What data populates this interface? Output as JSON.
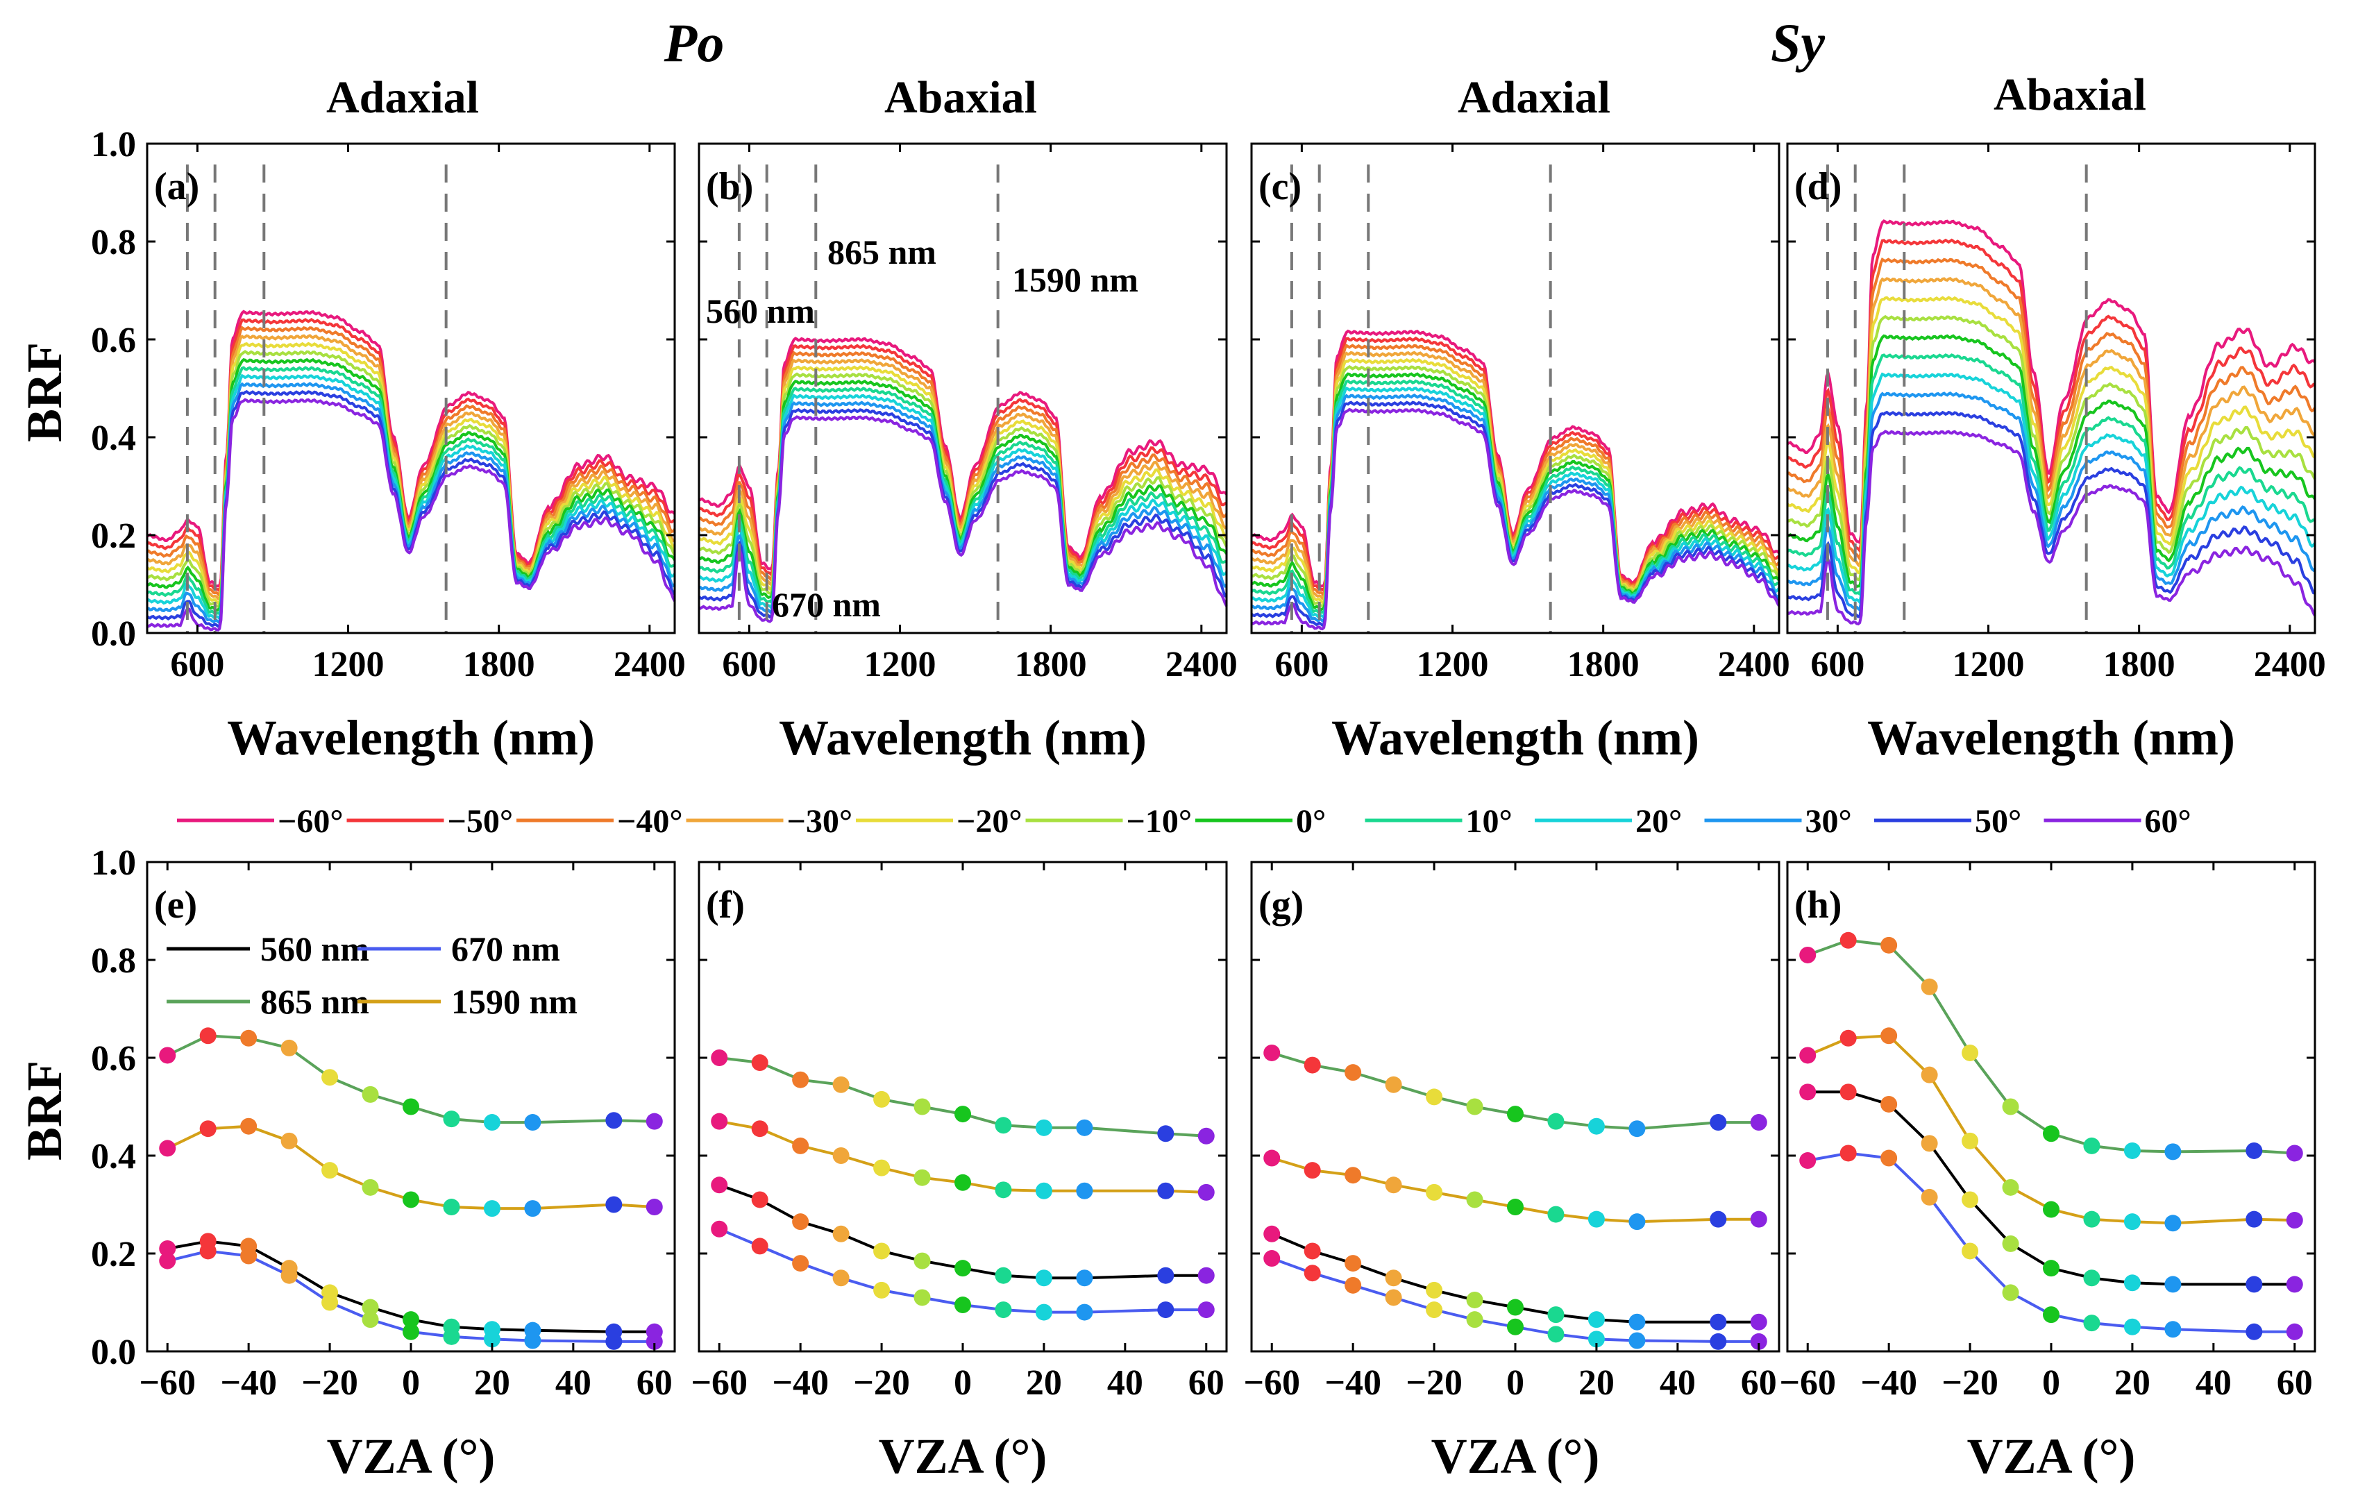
{
  "figure": {
    "species": [
      "Po",
      "Sy"
    ],
    "panel_titles": [
      "Adaxial",
      "Abaxial",
      "Adaxial",
      "Abaxial"
    ],
    "top_xlabel": "Wavelength (nm)",
    "bottom_xlabel": "VZA (°)",
    "ylabel": "BRF"
  },
  "axes": {
    "yticks": [
      "0.0",
      "0.2",
      "0.4",
      "0.6",
      "0.8",
      "1.0"
    ],
    "top_xticks": [
      "600",
      "1200",
      "1800",
      "2400"
    ],
    "bottom_xticks": [
      "−60",
      "−40",
      "−20",
      "0",
      "20",
      "40",
      "60"
    ]
  },
  "band_labels": [
    "560 nm",
    "670 nm",
    "865 nm",
    "1590 nm"
  ],
  "vza_legend": [
    {
      "label": "−60°",
      "color": "#e8197d"
    },
    {
      "label": "−50°",
      "color": "#f4363a"
    },
    {
      "label": "−40°",
      "color": "#ef7a2a"
    },
    {
      "label": "−30°",
      "color": "#f0a63a"
    },
    {
      "label": "−20°",
      "color": "#e8dc3a"
    },
    {
      "label": "−10°",
      "color": "#a8e040"
    },
    {
      "label": "0°",
      "color": "#17c51e"
    },
    {
      "label": "10°",
      "color": "#1ad890"
    },
    {
      "label": "20°",
      "color": "#17d3d9"
    },
    {
      "label": "30°",
      "color": "#1e96f0"
    },
    {
      "label": "50°",
      "color": "#2a3fe0"
    },
    {
      "label": "60°",
      "color": "#8a24e0"
    }
  ],
  "band_legend": [
    {
      "label": "560 nm",
      "color": "#000000"
    },
    {
      "label": "670 nm",
      "color": "#4a5cf0"
    },
    {
      "label": "865 nm",
      "color": "#5aa35a"
    },
    {
      "label": "1590 nm",
      "color": "#d4a017"
    }
  ],
  "chart_data": [
    {
      "type": "line",
      "panel": "(a)",
      "title": "Adaxial",
      "xlabel": "Wavelength (nm)",
      "ylabel": "BRF",
      "xlim": [
        400,
        2500
      ],
      "ylim": [
        0,
        1
      ],
      "vlines": [
        560,
        670,
        865,
        1590
      ],
      "series_note": "12 spectra for VZA −60° … 60°",
      "spectra": {
        "vis_bg": [
          0.19,
          0.015
        ],
        "green_peak": [
          0.23,
          0.05
        ],
        "nir": [
          0.655,
          0.475
        ],
        "swir1": [
          0.49,
          0.34
        ],
        "swir2": [
          0.36,
          0.23
        ],
        "end": [
          0.24,
          0.07
        ]
      }
    },
    {
      "type": "line",
      "panel": "(b)",
      "title": "Abaxial",
      "xlabel": "Wavelength (nm)",
      "ylabel": "BRF",
      "xlim": [
        400,
        2500
      ],
      "ylim": [
        0,
        1
      ],
      "vlines": [
        560,
        670,
        865,
        1590
      ],
      "series_note": "12 spectra for VZA −60° … 60°",
      "spectra": {
        "vis_bg": [
          0.26,
          0.05
        ],
        "green_peak": [
          0.34,
          0.17
        ],
        "nir": [
          0.6,
          0.44
        ],
        "swir1": [
          0.49,
          0.33
        ],
        "swir2": [
          0.39,
          0.22
        ],
        "end": [
          0.28,
          0.06
        ]
      }
    },
    {
      "type": "line",
      "panel": "(c)",
      "title": "Adaxial",
      "xlabel": "Wavelength (nm)",
      "ylabel": "BRF",
      "xlim": [
        400,
        2500
      ],
      "ylim": [
        0,
        1
      ],
      "vlines": [
        560,
        670,
        865,
        1590
      ],
      "series_note": "12 spectra for VZA −60° … 60°",
      "spectra": {
        "vis_bg": [
          0.19,
          0.02
        ],
        "green_peak": [
          0.24,
          0.06
        ],
        "nir": [
          0.615,
          0.455
        ],
        "swir1": [
          0.42,
          0.29
        ],
        "swir2": [
          0.26,
          0.16
        ],
        "end": [
          0.16,
          0.06
        ]
      }
    },
    {
      "type": "line",
      "panel": "(d)",
      "title": "Abaxial",
      "xlabel": "Wavelength (nm)",
      "ylabel": "BRF",
      "xlim": [
        400,
        2500
      ],
      "ylim": [
        0,
        1
      ],
      "vlines": [
        560,
        670,
        865,
        1590
      ],
      "series_note": "12 spectra for VZA −60° … 60°",
      "spectra": {
        "vis_bg": [
          0.37,
          0.04
        ],
        "green_peak": [
          0.53,
          0.15
        ],
        "nir": [
          0.84,
          0.41
        ],
        "swir1": [
          0.68,
          0.3
        ],
        "swir2": [
          0.62,
          0.17
        ],
        "end": [
          0.55,
          0.04
        ]
      }
    },
    {
      "type": "line",
      "panel": "(e)",
      "xlabel": "VZA (°)",
      "ylabel": "BRF",
      "xlim": [
        -65,
        65
      ],
      "ylim": [
        0,
        1
      ],
      "x": [
        -60,
        -50,
        -40,
        -30,
        -20,
        -10,
        0,
        10,
        20,
        30,
        50,
        60
      ],
      "series": [
        {
          "name": "560 nm",
          "values": [
            0.21,
            0.225,
            0.215,
            0.17,
            0.12,
            0.09,
            0.065,
            0.05,
            0.045,
            0.043,
            0.04,
            0.04
          ]
        },
        {
          "name": "670 nm",
          "values": [
            0.185,
            0.205,
            0.195,
            0.155,
            0.1,
            0.065,
            0.04,
            0.03,
            0.025,
            0.022,
            0.02,
            0.02
          ]
        },
        {
          "name": "865 nm",
          "values": [
            0.605,
            0.645,
            0.64,
            0.62,
            0.56,
            0.525,
            0.5,
            0.475,
            0.468,
            0.468,
            0.472,
            0.47
          ]
        },
        {
          "name": "1590 nm",
          "values": [
            0.415,
            0.455,
            0.46,
            0.43,
            0.37,
            0.335,
            0.31,
            0.295,
            0.292,
            0.292,
            0.3,
            0.295
          ]
        }
      ]
    },
    {
      "type": "line",
      "panel": "(f)",
      "xlabel": "VZA (°)",
      "ylabel": "BRF",
      "xlim": [
        -65,
        65
      ],
      "ylim": [
        0,
        1
      ],
      "x": [
        -60,
        -50,
        -40,
        -30,
        -20,
        -10,
        0,
        10,
        20,
        30,
        50,
        60
      ],
      "series": [
        {
          "name": "560 nm",
          "values": [
            0.34,
            0.31,
            0.265,
            0.24,
            0.205,
            0.185,
            0.17,
            0.155,
            0.15,
            0.15,
            0.155,
            0.155
          ]
        },
        {
          "name": "670 nm",
          "values": [
            0.25,
            0.215,
            0.18,
            0.15,
            0.125,
            0.11,
            0.095,
            0.085,
            0.08,
            0.08,
            0.085,
            0.085
          ]
        },
        {
          "name": "865 nm",
          "values": [
            0.6,
            0.59,
            0.555,
            0.545,
            0.515,
            0.5,
            0.485,
            0.462,
            0.457,
            0.457,
            0.445,
            0.44
          ]
        },
        {
          "name": "1590 nm",
          "values": [
            0.47,
            0.455,
            0.42,
            0.4,
            0.375,
            0.355,
            0.345,
            0.33,
            0.328,
            0.328,
            0.328,
            0.325
          ]
        }
      ]
    },
    {
      "type": "line",
      "panel": "(g)",
      "xlabel": "VZA (°)",
      "ylabel": "BRF",
      "xlim": [
        -65,
        65
      ],
      "ylim": [
        0,
        1
      ],
      "x": [
        -60,
        -50,
        -40,
        -30,
        -20,
        -10,
        0,
        10,
        20,
        30,
        50,
        60
      ],
      "series": [
        {
          "name": "560 nm",
          "values": [
            0.24,
            0.205,
            0.18,
            0.15,
            0.125,
            0.105,
            0.09,
            0.075,
            0.065,
            0.06,
            0.06,
            0.06
          ]
        },
        {
          "name": "670 nm",
          "values": [
            0.19,
            0.16,
            0.135,
            0.11,
            0.085,
            0.065,
            0.05,
            0.035,
            0.025,
            0.022,
            0.02,
            0.02
          ]
        },
        {
          "name": "865 nm",
          "values": [
            0.61,
            0.585,
            0.57,
            0.545,
            0.52,
            0.5,
            0.485,
            0.47,
            0.46,
            0.455,
            0.468,
            0.468
          ]
        },
        {
          "name": "1590 nm",
          "values": [
            0.395,
            0.37,
            0.36,
            0.34,
            0.325,
            0.31,
            0.295,
            0.28,
            0.27,
            0.265,
            0.27,
            0.27
          ]
        }
      ]
    },
    {
      "type": "line",
      "panel": "(h)",
      "xlabel": "VZA (°)",
      "ylabel": "BRF",
      "xlim": [
        -65,
        65
      ],
      "ylim": [
        0,
        1
      ],
      "x": [
        -60,
        -50,
        -40,
        -30,
        -20,
        -10,
        0,
        10,
        20,
        30,
        50,
        60
      ],
      "series": [
        {
          "name": "560 nm",
          "values": [
            0.53,
            0.53,
            0.505,
            0.425,
            0.31,
            0.22,
            0.17,
            0.15,
            0.14,
            0.137,
            0.137,
            0.137
          ]
        },
        {
          "name": "670 nm",
          "values": [
            0.39,
            0.405,
            0.395,
            0.315,
            0.205,
            0.12,
            0.075,
            0.058,
            0.05,
            0.045,
            0.04,
            0.04
          ]
        },
        {
          "name": "865 nm",
          "values": [
            0.81,
            0.84,
            0.83,
            0.745,
            0.61,
            0.5,
            0.445,
            0.42,
            0.41,
            0.408,
            0.41,
            0.405
          ]
        },
        {
          "name": "1590 nm",
          "values": [
            0.605,
            0.64,
            0.645,
            0.565,
            0.43,
            0.335,
            0.29,
            0.27,
            0.265,
            0.262,
            0.27,
            0.268
          ]
        }
      ]
    }
  ]
}
